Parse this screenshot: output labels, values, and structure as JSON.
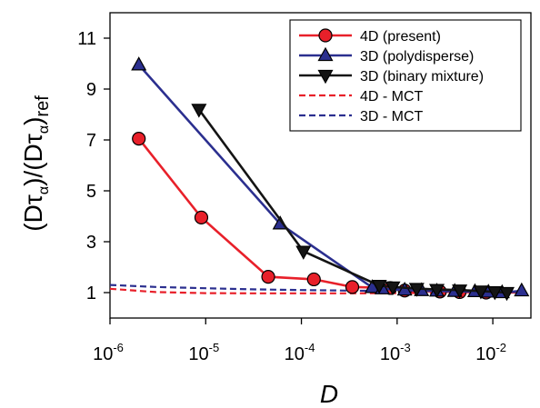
{
  "chart_data": {
    "type": "line",
    "title": "",
    "xlabel": "D",
    "ylabel_parts": [
      "(Dτ",
      "α",
      ")/(Dτ",
      "α",
      ")",
      "ref"
    ],
    "x_scale": "log",
    "xlim": [
      1e-06,
      0.025
    ],
    "ylim": [
      0,
      12
    ],
    "x_ticks": [
      {
        "value": 1e-06,
        "base": "10",
        "exp": "-6"
      },
      {
        "value": 1e-05,
        "base": "10",
        "exp": "-5"
      },
      {
        "value": 0.0001,
        "base": "10",
        "exp": "-4"
      },
      {
        "value": 0.001,
        "base": "10",
        "exp": "-3"
      },
      {
        "value": 0.01,
        "base": "10",
        "exp": "-2"
      }
    ],
    "y_ticks": [
      {
        "value": 1,
        "label": "1"
      },
      {
        "value": 3,
        "label": "3"
      },
      {
        "value": 5,
        "label": "5"
      },
      {
        "value": 7,
        "label": "7"
      },
      {
        "value": 9,
        "label": "9"
      },
      {
        "value": 11,
        "label": "11"
      }
    ],
    "grid": false,
    "legend_position": "top-right",
    "series": [
      {
        "name": "4D (present)",
        "color": "#e8202a",
        "marker": "circle",
        "line": "solid",
        "x": [
          2e-06,
          9e-06,
          4.5e-05,
          0.000135,
          0.00034,
          0.00085,
          0.0012,
          0.0028,
          0.0045,
          0.0085
        ],
        "y": [
          7.05,
          3.95,
          1.62,
          1.52,
          1.22,
          1.18,
          1.08,
          1.04,
          1.02,
          1.0
        ]
      },
      {
        "name": "3D (polydisperse)",
        "color": "#2b2f8f",
        "marker": "triangle-up",
        "line": "solid",
        "x": [
          2e-06,
          6e-05,
          0.00055,
          0.0007,
          0.0012,
          0.0018,
          0.0026,
          0.004,
          0.0065,
          0.009,
          0.0125,
          0.02
        ],
        "y": [
          9.95,
          3.7,
          1.2,
          1.15,
          1.1,
          1.08,
          1.06,
          1.05,
          1.04,
          1.02,
          1.0,
          1.07
        ]
      },
      {
        "name": "3D (binary mixture)",
        "color": "#141414",
        "marker": "triangle-down",
        "line": "solid",
        "x": [
          8.5e-06,
          0.000105,
          0.00065,
          0.0009,
          0.0016,
          0.0026,
          0.0045,
          0.0075,
          0.0105,
          0.014
        ],
        "y": [
          8.2,
          2.62,
          1.28,
          1.22,
          1.16,
          1.12,
          1.1,
          1.06,
          1.03,
          1.0
        ]
      },
      {
        "name": "4D - MCT",
        "color": "#e8202a",
        "marker": "none",
        "line": "dashed",
        "x": [
          1e-06,
          3e-06,
          1e-05,
          3e-05,
          0.0001,
          0.0003,
          0.001,
          0.003,
          0.01,
          0.02
        ],
        "y": [
          1.15,
          1.02,
          0.98,
          0.97,
          0.97,
          0.97,
          0.98,
          0.99,
          1.0,
          1.0
        ]
      },
      {
        "name": "3D - MCT",
        "color": "#2b2f8f",
        "marker": "none",
        "line": "dashed",
        "x": [
          1e-06,
          3e-06,
          1e-05,
          3e-05,
          0.0001,
          0.0003,
          0.001,
          0.003,
          0.01,
          0.02
        ],
        "y": [
          1.3,
          1.22,
          1.17,
          1.13,
          1.1,
          1.08,
          1.06,
          1.05,
          1.04,
          1.02
        ]
      }
    ]
  }
}
